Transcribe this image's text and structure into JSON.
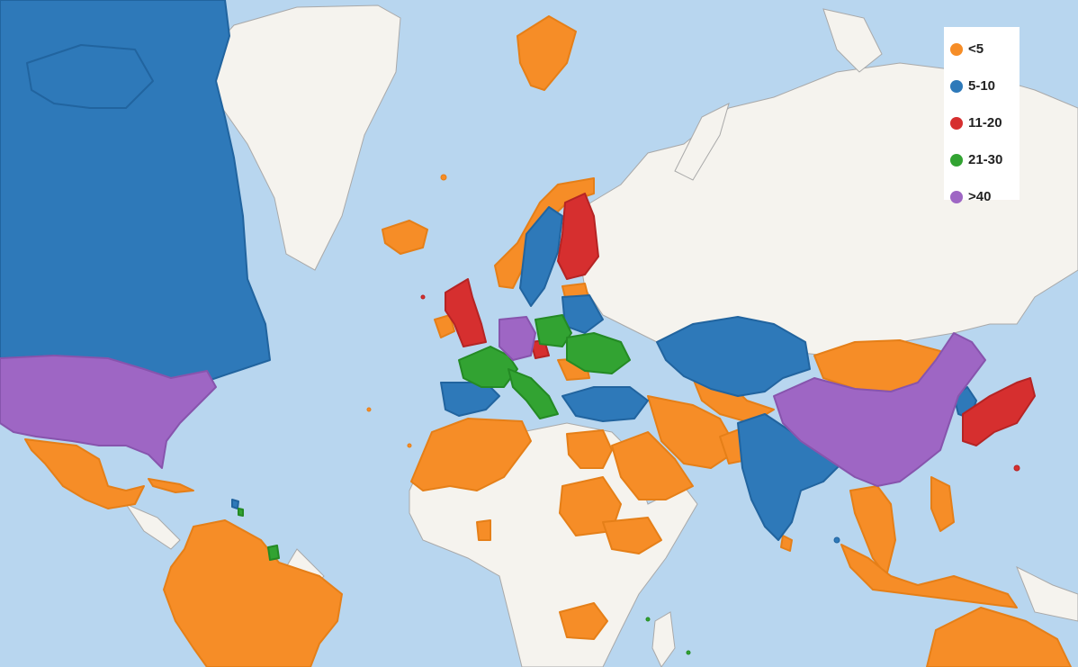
{
  "map": {
    "water_color": "#b8d6ef",
    "land_color": "#f5f3ee",
    "border_color": "#9f9f9f",
    "categories": {
      "lt5": "#f68d27",
      "c5_10": "#2e79b9",
      "c11_20": "#d62f2f",
      "c21_30": "#32a332",
      "gt40": "#9e66c4"
    }
  },
  "legend": {
    "items": [
      {
        "label": "<5",
        "color": "#f68d27"
      },
      {
        "label": "5-10",
        "color": "#2e79b9"
      },
      {
        "label": "11-20",
        "color": "#d62f2f"
      },
      {
        "label": "21-30",
        "color": "#32a332"
      },
      {
        "label": ">40",
        "color": "#9e66c4"
      }
    ]
  }
}
